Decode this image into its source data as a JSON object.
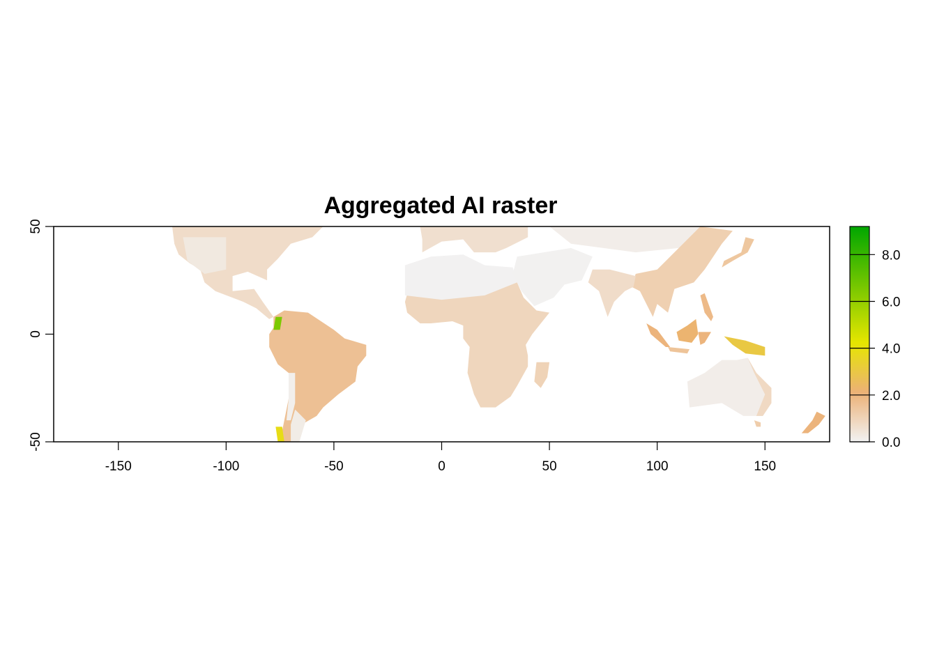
{
  "chart_data": {
    "type": "heatmap",
    "title": "Aggregated AI raster",
    "xlabel": "",
    "ylabel": "",
    "xlim": [
      -180,
      180
    ],
    "ylim": [
      -50,
      50
    ],
    "x_ticks": [
      "-150",
      "-100",
      "-50",
      "0",
      "50",
      "100",
      "150"
    ],
    "x_tick_values": [
      -150,
      -100,
      -50,
      0,
      50,
      100,
      150
    ],
    "y_ticks": [
      "-50",
      "0",
      "50"
    ],
    "y_tick_values": [
      -50,
      0,
      50
    ],
    "legend": {
      "placement": "right",
      "min": 0,
      "max": 9.2,
      "ticks": [
        "0.0",
        "2.0",
        "4.0",
        "6.0",
        "8.0"
      ],
      "tick_values": [
        0,
        2,
        4,
        6,
        8
      ],
      "colors": [
        "#f2f2f2",
        "#ecb176",
        "#e6e600",
        "#00a600"
      ]
    },
    "regions": [
      {
        "name": "north-america",
        "points": [
          [
            -125,
            50
          ],
          [
            -55,
            50
          ],
          [
            -60,
            45
          ],
          [
            -70,
            42
          ],
          [
            -76,
            35
          ],
          [
            -81,
            30
          ],
          [
            -81,
            25
          ],
          [
            -90,
            29
          ],
          [
            -97,
            27
          ],
          [
            -97,
            20
          ],
          [
            -87,
            21
          ],
          [
            -83,
            15
          ],
          [
            -78,
            8
          ],
          [
            -80,
            7
          ],
          [
            -86,
            12
          ],
          [
            -92,
            15
          ],
          [
            -105,
            20
          ],
          [
            -110,
            24
          ],
          [
            -112,
            30
          ],
          [
            -117,
            33
          ],
          [
            -122,
            37
          ],
          [
            -124,
            42
          ]
        ],
        "value": 0.7
      },
      {
        "name": "north-america-dry",
        "points": [
          [
            -120,
            45
          ],
          [
            -100,
            45
          ],
          [
            -100,
            30
          ],
          [
            -110,
            28
          ],
          [
            -118,
            34
          ]
        ],
        "value": 0.3
      },
      {
        "name": "south-america",
        "points": [
          [
            -78,
            8
          ],
          [
            -73,
            11
          ],
          [
            -62,
            10
          ],
          [
            -50,
            2
          ],
          [
            -45,
            -2
          ],
          [
            -35,
            -5
          ],
          [
            -35,
            -10
          ],
          [
            -39,
            -15
          ],
          [
            -40,
            -22
          ],
          [
            -48,
            -28
          ],
          [
            -55,
            -34
          ],
          [
            -58,
            -38
          ],
          [
            -65,
            -42
          ],
          [
            -66,
            -50
          ],
          [
            -75,
            -50
          ],
          [
            -73,
            -40
          ],
          [
            -71,
            -30
          ],
          [
            -71,
            -18
          ],
          [
            -76,
            -14
          ],
          [
            -80,
            -6
          ],
          [
            -80,
            0
          ],
          [
            -78,
            3
          ]
        ],
        "value": 1.6
      },
      {
        "name": "south-america-dry",
        "points": [
          [
            -71,
            -18
          ],
          [
            -68,
            -18
          ],
          [
            -68,
            -32
          ],
          [
            -70,
            -40
          ],
          [
            -72,
            -40
          ],
          [
            -71,
            -30
          ]
        ],
        "value": 0.1
      },
      {
        "name": "south-america-south",
        "points": [
          [
            -68,
            -35
          ],
          [
            -63,
            -40
          ],
          [
            -66,
            -50
          ],
          [
            -70,
            -50
          ],
          [
            -70,
            -42
          ]
        ],
        "value": 0.2
      },
      {
        "name": "andes-wet",
        "points": [
          [
            -77,
            8
          ],
          [
            -74,
            8
          ],
          [
            -75,
            2
          ],
          [
            -78,
            2
          ]
        ],
        "value": 6.5
      },
      {
        "name": "patagonia-wet",
        "points": [
          [
            -77,
            -43
          ],
          [
            -74,
            -43
          ],
          [
            -73,
            -50
          ],
          [
            -76,
            -50
          ]
        ],
        "value": 3.8
      },
      {
        "name": "africa",
        "points": [
          [
            -17,
            15
          ],
          [
            -16,
            10
          ],
          [
            -10,
            5
          ],
          [
            -5,
            5
          ],
          [
            5,
            6
          ],
          [
            10,
            4
          ],
          [
            10,
            -2
          ],
          [
            13,
            -6
          ],
          [
            12,
            -18
          ],
          [
            15,
            -28
          ],
          [
            18,
            -34
          ],
          [
            25,
            -34
          ],
          [
            32,
            -29
          ],
          [
            35,
            -24
          ],
          [
            40,
            -15
          ],
          [
            40,
            -10
          ],
          [
            39,
            -5
          ],
          [
            42,
            0
          ],
          [
            50,
            10
          ],
          [
            44,
            11
          ],
          [
            38,
            17
          ],
          [
            35,
            24
          ],
          [
            20,
            24
          ],
          [
            0,
            24
          ],
          [
            -15,
            22
          ]
        ],
        "value": 0.9
      },
      {
        "name": "sahara",
        "points": [
          [
            -17,
            32
          ],
          [
            -5,
            36
          ],
          [
            10,
            37
          ],
          [
            20,
            32
          ],
          [
            33,
            31
          ],
          [
            35,
            24
          ],
          [
            20,
            18
          ],
          [
            0,
            16
          ],
          [
            -17,
            18
          ]
        ],
        "value": 0.02
      },
      {
        "name": "madagascar",
        "points": [
          [
            44,
            -13
          ],
          [
            50,
            -13
          ],
          [
            49,
            -20
          ],
          [
            46,
            -25
          ],
          [
            43,
            -22
          ]
        ],
        "value": 1.0
      },
      {
        "name": "europe",
        "points": [
          [
            -10,
            50
          ],
          [
            40,
            50
          ],
          [
            40,
            45
          ],
          [
            30,
            40
          ],
          [
            25,
            38
          ],
          [
            15,
            38
          ],
          [
            10,
            44
          ],
          [
            0,
            43
          ],
          [
            -9,
            38
          ],
          [
            -9,
            44
          ]
        ],
        "value": 0.6
      },
      {
        "name": "middle-east",
        "points": [
          [
            35,
            36
          ],
          [
            60,
            40
          ],
          [
            70,
            36
          ],
          [
            65,
            25
          ],
          [
            57,
            23
          ],
          [
            52,
            17
          ],
          [
            43,
            13
          ],
          [
            37,
            20
          ],
          [
            33,
            28
          ]
        ],
        "value": 0.03
      },
      {
        "name": "central-asia",
        "points": [
          [
            50,
            50
          ],
          [
            120,
            50
          ],
          [
            110,
            40
          ],
          [
            90,
            38
          ],
          [
            75,
            40
          ],
          [
            60,
            42
          ]
        ],
        "value": 0.15
      },
      {
        "name": "east-asia",
        "points": [
          [
            120,
            50
          ],
          [
            135,
            48
          ],
          [
            130,
            42
          ],
          [
            122,
            30
          ],
          [
            117,
            24
          ],
          [
            108,
            21
          ],
          [
            105,
            10
          ],
          [
            100,
            14
          ],
          [
            98,
            8
          ],
          [
            92,
            20
          ],
          [
            88,
            22
          ],
          [
            90,
            28
          ],
          [
            100,
            30
          ],
          [
            110,
            40
          ]
        ],
        "value": 1.1
      },
      {
        "name": "india",
        "points": [
          [
            68,
            24
          ],
          [
            73,
            20
          ],
          [
            77,
            8
          ],
          [
            80,
            15
          ],
          [
            85,
            20
          ],
          [
            89,
            22
          ],
          [
            90,
            27
          ],
          [
            78,
            30
          ],
          [
            70,
            30
          ]
        ],
        "value": 0.7
      },
      {
        "name": "japan",
        "points": [
          [
            130,
            31
          ],
          [
            135,
            34
          ],
          [
            142,
            38
          ],
          [
            145,
            44
          ],
          [
            141,
            45
          ],
          [
            139,
            38
          ],
          [
            131,
            34
          ]
        ],
        "value": 1.4
      },
      {
        "name": "borneo",
        "points": [
          [
            109,
            1
          ],
          [
            114,
            4
          ],
          [
            118,
            7
          ],
          [
            119,
            0
          ],
          [
            116,
            -4
          ],
          [
            110,
            -3
          ]
        ],
        "value": 2.2
      },
      {
        "name": "sumatra",
        "points": [
          [
            95,
            5
          ],
          [
            100,
            2
          ],
          [
            106,
            -6
          ],
          [
            104,
            -6
          ],
          [
            97,
            0
          ]
        ],
        "value": 2.0
      },
      {
        "name": "java",
        "points": [
          [
            105,
            -6
          ],
          [
            115,
            -7
          ],
          [
            114,
            -9
          ],
          [
            106,
            -8
          ]
        ],
        "value": 1.5
      },
      {
        "name": "sulawesi",
        "points": [
          [
            119,
            1
          ],
          [
            125,
            1
          ],
          [
            122,
            -4
          ],
          [
            120,
            -5
          ]
        ],
        "value": 2.0
      },
      {
        "name": "philippines",
        "points": [
          [
            120,
            18
          ],
          [
            122,
            19
          ],
          [
            126,
            8
          ],
          [
            125,
            6
          ],
          [
            122,
            10
          ]
        ],
        "value": 1.8
      },
      {
        "name": "new-guinea",
        "points": [
          [
            131,
            -1
          ],
          [
            141,
            -3
          ],
          [
            150,
            -6
          ],
          [
            150,
            -10
          ],
          [
            141,
            -9
          ],
          [
            135,
            -5
          ]
        ],
        "value": 3.0
      },
      {
        "name": "australia",
        "points": [
          [
            114,
            -22
          ],
          [
            122,
            -18
          ],
          [
            130,
            -12
          ],
          [
            137,
            -12
          ],
          [
            142,
            -11
          ],
          [
            146,
            -18
          ],
          [
            153,
            -25
          ],
          [
            153,
            -32
          ],
          [
            149,
            -38
          ],
          [
            140,
            -38
          ],
          [
            130,
            -32
          ],
          [
            115,
            -34
          ]
        ],
        "value": 0.15
      },
      {
        "name": "australia-east",
        "points": [
          [
            142,
            -11
          ],
          [
            146,
            -18
          ],
          [
            153,
            -25
          ],
          [
            153,
            -32
          ],
          [
            149,
            -38
          ],
          [
            146,
            -38
          ],
          [
            150,
            -28
          ],
          [
            145,
            -18
          ]
        ],
        "value": 0.8
      },
      {
        "name": "tasmania",
        "points": [
          [
            145,
            -40
          ],
          [
            148,
            -41
          ],
          [
            148,
            -43
          ],
          [
            146,
            -43
          ]
        ],
        "value": 1.2
      },
      {
        "name": "new-zealand",
        "points": [
          [
            167,
            -46
          ],
          [
            172,
            -40
          ],
          [
            174,
            -36
          ],
          [
            178,
            -38
          ],
          [
            175,
            -42
          ],
          [
            170,
            -46
          ]
        ],
        "value": 2.0
      },
      {
        "name": "uk",
        "points": [
          [
            -6,
            50
          ],
          [
            2,
            50
          ],
          [
            0,
            53
          ],
          [
            -3,
            55
          ],
          [
            -6,
            53
          ]
        ],
        "value": 1.0
      }
    ]
  }
}
